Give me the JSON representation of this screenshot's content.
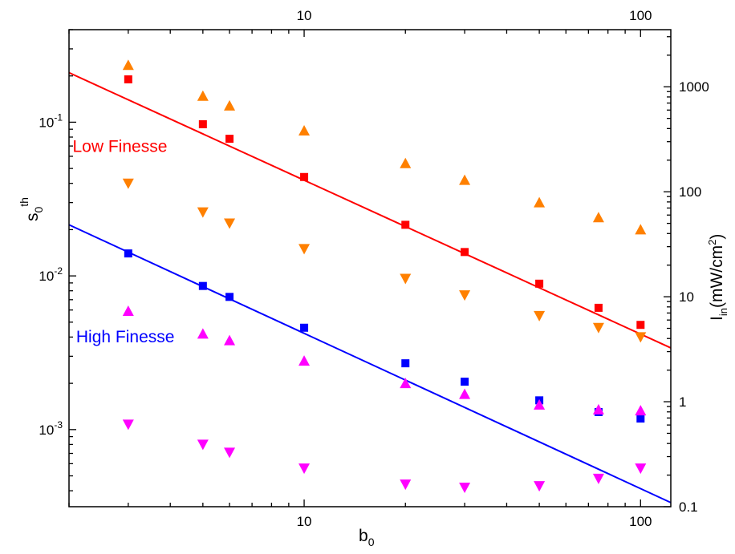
{
  "chart_data": {
    "type": "scatter",
    "x_scale": "log",
    "y_scale": "log",
    "grid": false,
    "legend": "none",
    "xlim": [
      2,
      123
    ],
    "ylim_left": [
      0.000315,
      0.4
    ],
    "ylim_right": [
      0.1,
      3500
    ],
    "xlabel_main": "b",
    "xlabel_sub": "0",
    "ylabel_left_main": "s",
    "ylabel_left_sub": "0",
    "ylabel_left_sup": "th",
    "ylabel_right_main": "I",
    "ylabel_right_sub": "in",
    "ylabel_right_unit_pre": "(mW/cm",
    "ylabel_right_unit_sup": "2",
    "ylabel_right_unit_post": ")",
    "x_ticks_bottom": [
      {
        "value": 10,
        "label": "10"
      },
      {
        "value": 100,
        "label": "100"
      }
    ],
    "x_ticks_top": [
      {
        "value": 10,
        "label": "10"
      },
      {
        "value": 100,
        "label": "100"
      }
    ],
    "y_ticks_left": [
      {
        "value": 0.1,
        "mant": "10",
        "exp": "-1"
      },
      {
        "value": 0.01,
        "mant": "10",
        "exp": "-2"
      },
      {
        "value": 0.001,
        "mant": "10",
        "exp": "-3"
      }
    ],
    "y_ticks_right": [
      {
        "value": 1000,
        "label": "1000"
      },
      {
        "value": 100,
        "label": "100"
      },
      {
        "value": 10,
        "label": "10"
      },
      {
        "value": 1,
        "label": "1"
      },
      {
        "value": 0.1,
        "label": "0.1"
      }
    ],
    "annotations": [
      {
        "text": "Low Finesse",
        "x": 2.05,
        "y": 0.064,
        "color": "#ff0000"
      },
      {
        "text": "High Finesse",
        "x": 2.1,
        "y": 0.0037,
        "color": "#0000ff"
      }
    ],
    "series": [
      {
        "marker": "square",
        "color": "#ff0000",
        "x": [
          3,
          5,
          6,
          10,
          20,
          30,
          50,
          75,
          100
        ],
        "y": [
          0.19,
          0.097,
          0.078,
          0.044,
          0.0215,
          0.0143,
          0.0089,
          0.0062,
          0.0048
        ]
      },
      {
        "marker": "triangle-up",
        "color": "#ff8000",
        "x": [
          3,
          5,
          6,
          10,
          20,
          30,
          50,
          75,
          100
        ],
        "y": [
          0.235,
          0.148,
          0.128,
          0.088,
          0.054,
          0.042,
          0.03,
          0.024,
          0.02
        ]
      },
      {
        "marker": "triangle-down",
        "color": "#ff8000",
        "x": [
          3,
          5,
          6,
          10,
          20,
          30,
          50,
          75,
          100
        ],
        "y": [
          0.04,
          0.026,
          0.022,
          0.015,
          0.0096,
          0.0075,
          0.0055,
          0.0046,
          0.004
        ]
      },
      {
        "marker": "square",
        "color": "#0000ff",
        "x": [
          3,
          5,
          6,
          10,
          20,
          30,
          50,
          75,
          100
        ],
        "y": [
          0.014,
          0.0086,
          0.0073,
          0.0046,
          0.0027,
          0.00205,
          0.00155,
          0.0013,
          0.00118
        ]
      },
      {
        "marker": "triangle-up",
        "color": "#ff00ff",
        "x": [
          3,
          5,
          6,
          10,
          20,
          30,
          50,
          75,
          100
        ],
        "y": [
          0.0059,
          0.0042,
          0.0038,
          0.0028,
          0.002,
          0.0017,
          0.00145,
          0.00135,
          0.00133
        ]
      },
      {
        "marker": "triangle-down",
        "color": "#ff00ff",
        "x": [
          3,
          5,
          6,
          10,
          20,
          30,
          50,
          75,
          100
        ],
        "y": [
          0.00108,
          0.0008,
          0.00071,
          0.00056,
          0.00044,
          0.00042,
          0.00043,
          0.00048,
          0.00056
        ]
      }
    ],
    "fit_lines": [
      {
        "color": "#ff0000",
        "x": [
          2,
          123
        ],
        "y": [
          0.21,
          0.0034
        ]
      },
      {
        "color": "#0000ff",
        "x": [
          2,
          123
        ],
        "y": [
          0.0215,
          0.000335
        ]
      }
    ]
  }
}
